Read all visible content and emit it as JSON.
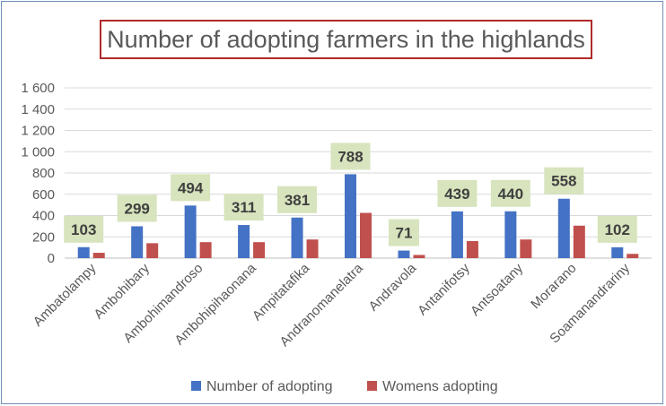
{
  "chart_data": {
    "type": "bar",
    "title": "Number of adopting farmers in the highlands",
    "categories": [
      "Ambatolampy",
      "Ambohibary",
      "Ambohimandroso",
      "Ambohipihaonana",
      "Ampitatafika",
      "Andranomanelatra",
      "Andravola",
      "Antanifotsy",
      "Antsoatany",
      "Morarano",
      "Soamanandrariny"
    ],
    "series": [
      {
        "name": "Number of adopting",
        "values": [
          103,
          299,
          494,
          311,
          381,
          788,
          71,
          439,
          440,
          558,
          102
        ],
        "color": "#4472c4"
      },
      {
        "name": "Womens adopting",
        "values": [
          50,
          140,
          150,
          150,
          175,
          425,
          30,
          160,
          175,
          305,
          40
        ],
        "color": "#c0504d"
      }
    ],
    "data_labels": [
      "103",
      "299",
      "494",
      "311",
      "381",
      "788",
      "71",
      "439",
      "440",
      "558",
      "102"
    ],
    "data_label_bg": "#d7e4bd",
    "y_ticks": [
      "0",
      "200",
      "400",
      "600",
      "800",
      "1 000",
      "1 200",
      "1 400",
      "1 600"
    ],
    "ylim": [
      0,
      1600
    ],
    "grid": true,
    "legend_position": "bottom"
  }
}
